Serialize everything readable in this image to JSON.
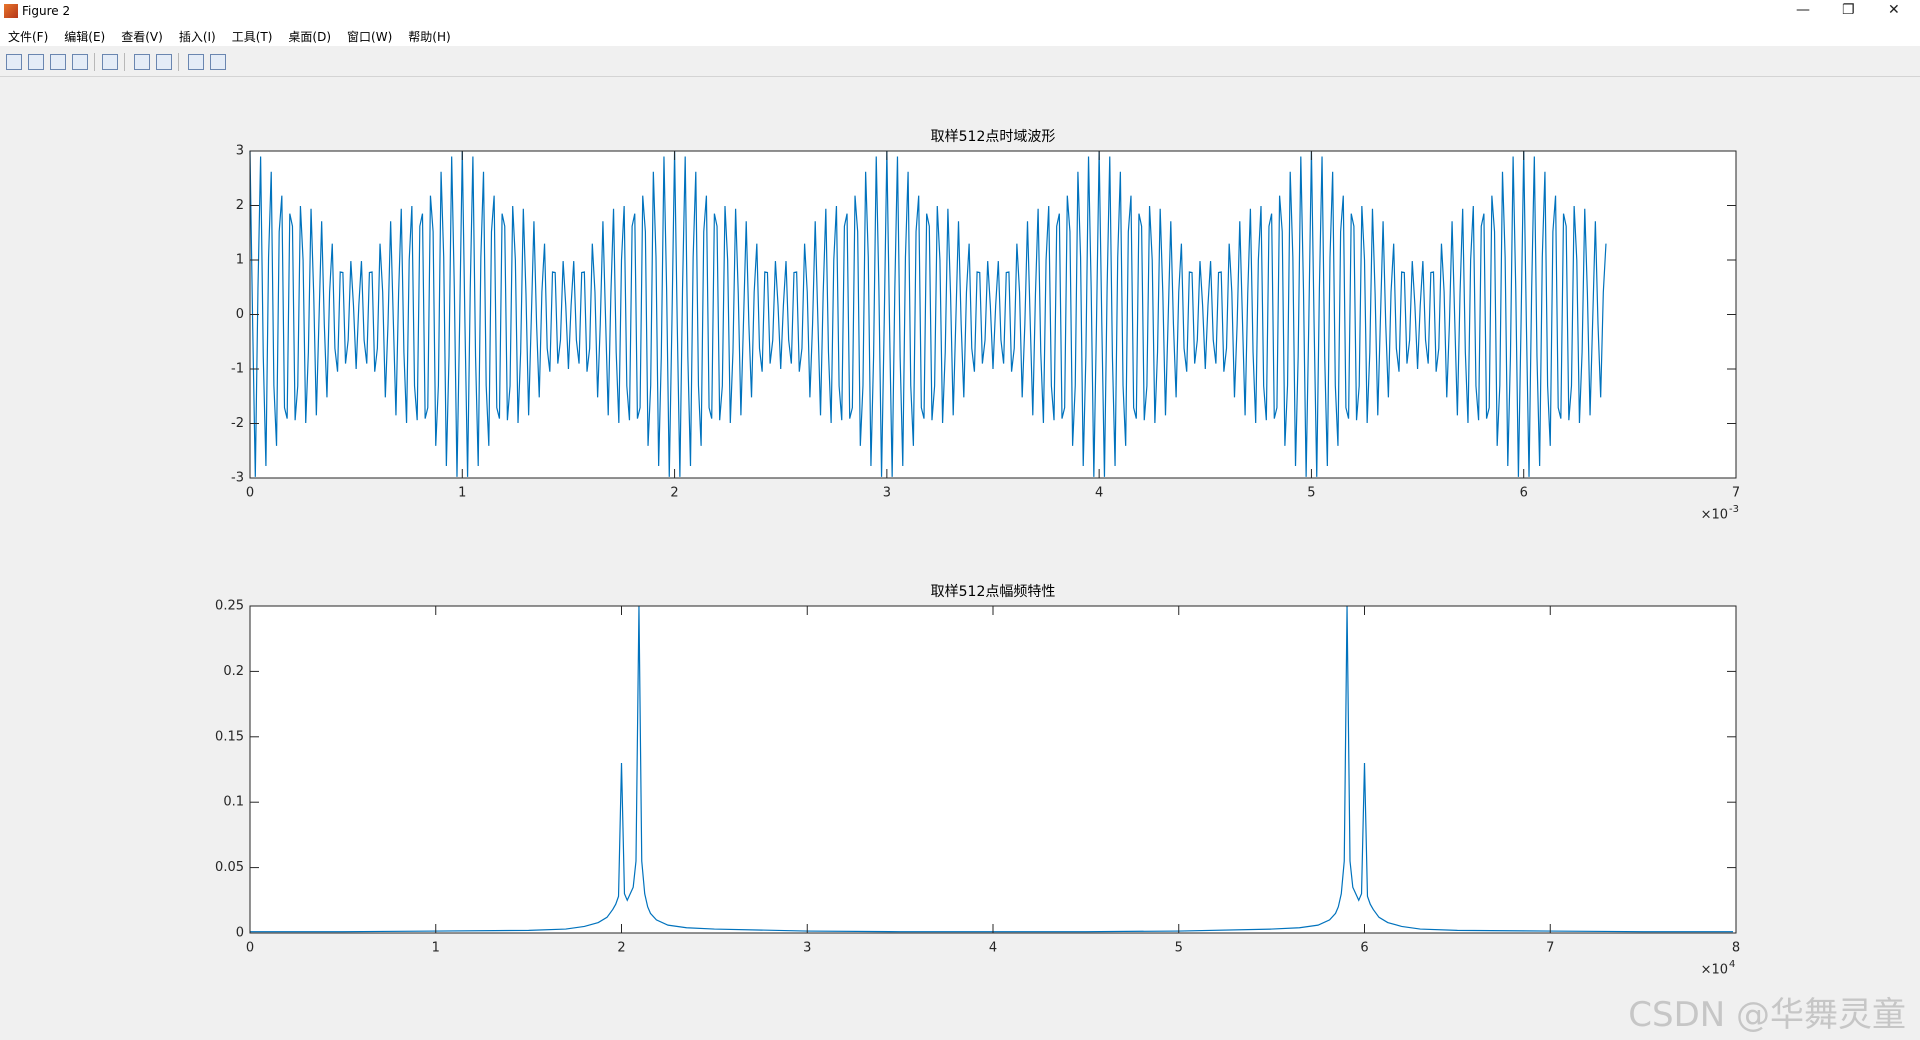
{
  "window": {
    "title": "Figure 2"
  },
  "menu": [
    "文件(F)",
    "编辑(E)",
    "查看(V)",
    "插入(I)",
    "工具(T)",
    "桌面(D)",
    "窗口(W)",
    "帮助(H)"
  ],
  "watermark": "CSDN @华舞灵童",
  "chart_data": [
    {
      "type": "line",
      "title": "取样512点时域波形",
      "color": "#0072bd",
      "xlim": [
        0,
        7
      ],
      "xticks": [
        0,
        1,
        2,
        3,
        4,
        5,
        6,
        7
      ],
      "ylim": [
        -3,
        3
      ],
      "yticks": [
        -3,
        -2,
        -1,
        0,
        1,
        2,
        3
      ],
      "x_multiplier": {
        "base": "×10",
        "exponent": "-3"
      },
      "x": [
        0,
        0.0125,
        0.025,
        0.0375,
        0.05,
        0.0625,
        0.075,
        0.0875,
        0.1,
        0.1125,
        0.125,
        0.1375,
        0.15,
        0.1625,
        0.175,
        0.1875,
        0.2,
        0.2125,
        0.225,
        0.2375,
        0.25,
        0.2625,
        0.275,
        0.2875,
        0.3,
        0.3125,
        0.325,
        0.3375,
        0.35,
        0.3625,
        0.375,
        0.3875,
        0.4,
        0.4125,
        0.425,
        0.4375,
        0.45,
        0.4625,
        0.475,
        0.4875,
        0.5,
        0.5125,
        0.525,
        0.5375,
        0.55,
        0.5625,
        0.575,
        0.5875,
        0.6,
        0.6125,
        0.625,
        0.6375,
        0.65,
        0.6625,
        0.675,
        0.6875,
        0.7,
        0.7125,
        0.725,
        0.7375,
        0.75,
        0.7625,
        0.775,
        0.7875,
        0.8,
        0.8125,
        0.825,
        0.8375,
        0.85,
        0.8625,
        0.875,
        0.8875,
        0.9,
        0.9125,
        0.925,
        0.9375,
        0.95,
        0.9625,
        0.975,
        0.9875,
        1,
        1.0125,
        1.025,
        1.0375,
        1.05,
        1.0625,
        1.075,
        1.0875,
        1.1,
        1.1125,
        1.125,
        1.1375,
        1.15,
        1.1625,
        1.175,
        1.1875,
        1.2,
        1.2125,
        1.225,
        1.2375,
        1.25,
        1.2625,
        1.275,
        1.2875,
        1.3,
        1.3125,
        1.325,
        1.3375,
        1.35,
        1.3625,
        1.375,
        1.3875,
        1.4,
        1.4125,
        1.425,
        1.4375,
        1.45,
        1.4625,
        1.475,
        1.4875,
        1.5,
        1.5125,
        1.525,
        1.5375,
        1.55,
        1.5625,
        1.575,
        1.5875,
        1.6,
        1.6125,
        1.625,
        1.6375,
        1.65,
        1.6625,
        1.675,
        1.6875,
        1.7,
        1.7125,
        1.725,
        1.7375,
        1.75,
        1.7625,
        1.775,
        1.7875,
        1.8,
        1.8125,
        1.825,
        1.8375,
        1.85,
        1.8625,
        1.875,
        1.8875,
        1.9,
        1.9125,
        1.925,
        1.9375,
        1.95,
        1.9625,
        1.975,
        1.9875,
        2,
        2.0125,
        2.025,
        2.0375,
        2.05,
        2.0625,
        2.075,
        2.0875,
        2.1,
        2.1125,
        2.125,
        2.1375,
        2.15,
        2.1625,
        2.175,
        2.1875,
        2.2,
        2.2125,
        2.225,
        2.2375,
        2.25,
        2.2625,
        2.275,
        2.2875,
        2.3,
        2.3125,
        2.325,
        2.3375,
        2.35,
        2.3625,
        2.375,
        2.3875,
        2.4,
        2.4125,
        2.425,
        2.4375,
        2.45,
        2.4625,
        2.475,
        2.4875,
        2.5,
        2.5125,
        2.525,
        2.5375,
        2.55,
        2.5625,
        2.575,
        2.5875,
        2.6,
        2.6125,
        2.625,
        2.6375,
        2.65,
        2.6625,
        2.675,
        2.6875,
        2.7,
        2.7125,
        2.725,
        2.7375,
        2.75,
        2.7625,
        2.775,
        2.7875,
        2.8,
        2.8125,
        2.825,
        2.8375,
        2.85,
        2.8625,
        2.875,
        2.8875,
        2.9,
        2.9125,
        2.925,
        2.9375,
        2.95,
        2.9625,
        2.975,
        2.9875,
        3,
        3.0125,
        3.025,
        3.0375,
        3.05,
        3.0625,
        3.075,
        3.0875,
        3.1,
        3.1125,
        3.125,
        3.1375,
        3.15,
        3.1625,
        3.175,
        3.1875,
        3.2,
        3.2125,
        3.225,
        3.2375,
        3.25,
        3.2625,
        3.275,
        3.2875,
        3.3,
        3.3125,
        3.325,
        3.3375,
        3.35,
        3.3625,
        3.375,
        3.3875,
        3.4,
        3.4125,
        3.425,
        3.4375,
        3.45,
        3.4625,
        3.475,
        3.4875,
        3.5,
        3.5125,
        3.525,
        3.5375,
        3.55,
        3.5625,
        3.575,
        3.5875,
        3.6,
        3.6125,
        3.625,
        3.6375,
        3.65,
        3.6625,
        3.675,
        3.6875,
        3.7,
        3.7125,
        3.725,
        3.7375,
        3.75,
        3.7625,
        3.775,
        3.7875,
        3.8,
        3.8125,
        3.825,
        3.8375,
        3.85,
        3.8625,
        3.875,
        3.8875,
        3.9,
        3.9125,
        3.925,
        3.9375,
        3.95,
        3.9625,
        3.975,
        3.9875,
        4,
        4.0125,
        4.025,
        4.0375,
        4.05,
        4.0625,
        4.075,
        4.0875,
        4.1,
        4.1125,
        4.125,
        4.1375,
        4.15,
        4.1625,
        4.175,
        4.1875,
        4.2,
        4.2125,
        4.225,
        4.2375,
        4.25,
        4.2625,
        4.275,
        4.2875,
        4.3,
        4.3125,
        4.325,
        4.3375,
        4.35,
        4.3625,
        4.375,
        4.3875,
        4.4,
        4.4125,
        4.425,
        4.4375,
        4.45,
        4.4625,
        4.475,
        4.4875,
        4.5,
        4.5125,
        4.525,
        4.5375,
        4.55,
        4.5625,
        4.575,
        4.5875,
        4.6,
        4.6125,
        4.625,
        4.6375,
        4.65,
        4.6625,
        4.675,
        4.6875,
        4.7,
        4.7125,
        4.725,
        4.7375,
        4.75,
        4.7625,
        4.775,
        4.7875,
        4.8,
        4.8125,
        4.825,
        4.8375,
        4.85,
        4.8625,
        4.875,
        4.8875,
        4.9,
        4.9125,
        4.925,
        4.9375,
        4.95,
        4.9625,
        4.975,
        4.9875,
        5,
        5.0125,
        5.025,
        5.0375,
        5.05,
        5.0625,
        5.075,
        5.0875,
        5.1,
        5.1125,
        5.125,
        5.1375,
        5.15,
        5.1625,
        5.175,
        5.1875,
        5.2,
        5.2125,
        5.225,
        5.2375,
        5.25,
        5.2625,
        5.275,
        5.2875,
        5.3,
        5.3125,
        5.325,
        5.3375,
        5.35,
        5.3625,
        5.375,
        5.3875,
        5.4,
        5.4125,
        5.425,
        5.4375,
        5.45,
        5.4625,
        5.475,
        5.4875,
        5.5,
        5.5125,
        5.525,
        5.5375,
        5.55,
        5.5625,
        5.575,
        5.5875,
        5.6,
        5.6125,
        5.625,
        5.6375,
        5.65,
        5.6625,
        5.675,
        5.6875,
        5.7,
        5.7125,
        5.725,
        5.7375,
        5.75,
        5.7625,
        5.775,
        5.7875,
        5.8,
        5.8125,
        5.825,
        5.8375,
        5.85,
        5.8625,
        5.875,
        5.8875,
        5.9,
        5.9125,
        5.925,
        5.9375,
        5.95,
        5.9625,
        5.975,
        5.9875,
        6,
        6.0125,
        6.025,
        6.0375,
        6.05,
        6.0625,
        6.075,
        6.0875,
        6.1,
        6.1125,
        6.125,
        6.1375,
        6.15,
        6.1625,
        6.175,
        6.1875,
        6.2,
        6.2125,
        6.225,
        6.2375,
        6.25,
        6.2625,
        6.275,
        6.2875,
        6.3,
        6.3125,
        6.325,
        6.3375,
        6.35,
        6.3625,
        6.375,
        6.3875
      ],
      "values": [
        3,
        -0.16,
        -2.98,
        0.47,
        2.9,
        -0.77,
        -2.78,
        1.05,
        2.62,
        -1.3,
        -2.41,
        1.52,
        2.18,
        -1.71,
        -1.91,
        1.85,
        1.62,
        -1.94,
        -1.31,
        1.99,
        1,
        -1.99,
        -0.69,
        1.94,
        0.38,
        -1.85,
        -0.09,
        1.71,
        -0.18,
        -1.52,
        0.41,
        1.3,
        -0.62,
        -1.05,
        0.78,
        0.77,
        -0.9,
        -0.47,
        0.98,
        0.16,
        -1,
        0.16,
        0.98,
        -0.47,
        -0.9,
        0.77,
        0.78,
        -1.05,
        -0.62,
        1.3,
        0.41,
        -1.52,
        -0.18,
        1.71,
        -0.09,
        -1.85,
        0.38,
        1.94,
        -0.69,
        -1.99,
        1,
        1.99,
        -1.31,
        -1.94,
        1.62,
        1.85,
        -1.91,
        -1.71,
        2.18,
        1.52,
        -2.41,
        -1.3,
        2.62,
        1.05,
        -2.78,
        -0.77,
        2.9,
        0.47,
        -2.98,
        -0.16,
        3,
        -0.16,
        -2.98,
        0.47,
        2.9,
        -0.77,
        -2.78,
        1.05,
        2.62,
        -1.3,
        -2.41,
        1.52,
        2.18,
        -1.71,
        -1.91,
        1.85,
        1.62,
        -1.94,
        -1.31,
        1.99,
        1,
        -1.99,
        -0.69,
        1.94,
        0.38,
        -1.85,
        -0.09,
        1.71,
        -0.18,
        -1.52,
        0.41,
        1.3,
        -0.62,
        -1.05,
        0.78,
        0.77,
        -0.9,
        -0.47,
        0.98,
        0.16,
        -1,
        0.16,
        0.98,
        -0.47,
        -0.9,
        0.77,
        0.78,
        -1.05,
        -0.62,
        1.3,
        0.41,
        -1.52,
        -0.18,
        1.71,
        -0.09,
        -1.85,
        0.38,
        1.94,
        -0.69,
        -1.99,
        1,
        1.99,
        -1.31,
        -1.94,
        1.62,
        1.85,
        -1.91,
        -1.71,
        2.18,
        1.52,
        -2.41,
        -1.3,
        2.62,
        1.05,
        -2.78,
        -0.77,
        2.9,
        0.47,
        -2.98,
        -0.16,
        3,
        -0.16,
        -2.98,
        0.47,
        2.9,
        -0.77,
        -2.78,
        1.05,
        2.62,
        -1.3,
        -2.41,
        1.52,
        2.18,
        -1.71,
        -1.91,
        1.85,
        1.62,
        -1.94,
        -1.31,
        1.99,
        1,
        -1.99,
        -0.69,
        1.94,
        0.38,
        -1.85,
        -0.09,
        1.71,
        -0.18,
        -1.52,
        0.41,
        1.3,
        -0.62,
        -1.05,
        0.78,
        0.77,
        -0.9,
        -0.47,
        0.98,
        0.16,
        -1,
        0.16,
        0.98,
        -0.47,
        -0.9,
        0.77,
        0.78,
        -1.05,
        -0.62,
        1.3,
        0.41,
        -1.52,
        -0.18,
        1.71,
        -0.09,
        -1.85,
        0.38,
        1.94,
        -0.69,
        -1.99,
        1,
        1.99,
        -1.31,
        -1.94,
        1.62,
        1.85,
        -1.91,
        -1.71,
        2.18,
        1.52,
        -2.41,
        -1.3,
        2.62,
        1.05,
        -2.78,
        -0.77,
        2.9,
        0.47,
        -2.98,
        -0.16,
        3,
        -0.16,
        -2.98,
        0.47,
        2.9,
        -0.77,
        -2.78,
        1.05,
        2.62,
        -1.3,
        -2.41,
        1.52,
        2.18,
        -1.71,
        -1.91,
        1.85,
        1.62,
        -1.94,
        -1.31,
        1.99,
        1,
        -1.99,
        -0.69,
        1.94,
        0.38,
        -1.85,
        -0.09,
        1.71,
        -0.18,
        -1.52,
        0.41,
        1.3,
        -0.62,
        -1.05,
        0.78,
        0.77,
        -0.9,
        -0.47,
        0.98,
        0.16,
        -1,
        0.16,
        0.98,
        -0.47,
        -0.9,
        0.77,
        0.78,
        -1.05,
        -0.62,
        1.3,
        0.41,
        -1.52,
        -0.18,
        1.71,
        -0.09,
        -1.85,
        0.38,
        1.94,
        -0.69,
        -1.99,
        1,
        1.99,
        -1.31,
        -1.94,
        1.62,
        1.85,
        -1.91,
        -1.71,
        2.18,
        1.52,
        -2.41,
        -1.3,
        2.62,
        1.05,
        -2.78,
        -0.77,
        2.9,
        0.47,
        -2.98,
        -0.16,
        3,
        -0.16,
        -2.98,
        0.47,
        2.9,
        -0.77,
        -2.78,
        1.05,
        2.62,
        -1.3,
        -2.41,
        1.52,
        2.18,
        -1.71,
        -1.91,
        1.85,
        1.62,
        -1.94,
        -1.31,
        1.99,
        1,
        -1.99,
        -0.69,
        1.94,
        0.38,
        -1.85,
        -0.09,
        1.71,
        -0.18,
        -1.52,
        0.41,
        1.3,
        -0.62,
        -1.05,
        0.78,
        0.77,
        -0.9,
        -0.47,
        0.98,
        0.16,
        -1,
        0.16,
        0.98,
        -0.47,
        -0.9,
        0.77,
        0.78,
        -1.05,
        -0.62,
        1.3,
        0.41,
        -1.52,
        -0.18,
        1.71,
        -0.09,
        -1.85,
        0.38,
        1.94,
        -0.69,
        -1.99,
        1,
        1.99,
        -1.31,
        -1.94,
        1.62,
        1.85,
        -1.91,
        -1.71,
        2.18,
        1.52,
        -2.41,
        -1.3,
        2.62,
        1.05,
        -2.78,
        -0.77,
        2.9,
        0.47,
        -2.98,
        -0.16,
        3,
        -0.16,
        -2.98,
        0.47,
        2.9,
        -0.77,
        -2.78,
        1.05,
        2.62,
        -1.3,
        -2.41,
        1.52,
        2.18,
        -1.71,
        -1.91,
        1.85,
        1.62,
        -1.94,
        -1.31,
        1.99,
        1,
        -1.99,
        -0.69,
        1.94,
        0.38,
        -1.85,
        -0.09,
        1.71,
        -0.18,
        -1.52,
        0.41,
        1.3,
        -0.62,
        -1.05,
        0.78,
        0.77,
        -0.9,
        -0.47,
        0.98,
        0.16,
        -1,
        0.16,
        0.98,
        -0.47,
        -0.9,
        0.77,
        0.78,
        -1.05,
        -0.62,
        1.3,
        0.41,
        -1.52,
        -0.18,
        1.71,
        -0.09,
        -1.85,
        0.38,
        1.94,
        -0.69,
        -1.99,
        1,
        1.99,
        -1.31,
        -1.94,
        1.62,
        1.85,
        -1.91,
        -1.71,
        2.18,
        1.52,
        -2.41,
        -1.3,
        2.62,
        1.05,
        -2.78,
        -0.77,
        2.9,
        0.47,
        -2.98,
        -0.16,
        3,
        -0.16,
        -2.98,
        0.47,
        2.9,
        -0.77,
        -2.78,
        1.05,
        2.62,
        -1.3,
        -2.41,
        1.52,
        2.18,
        -1.71,
        -1.91,
        1.85,
        1.62,
        -1.94,
        -1.31,
        1.99,
        1,
        -1.99,
        -0.69,
        1.94,
        0.38,
        -1.85,
        -0.09,
        1.71,
        -0.18,
        -1.52,
        0.41,
        1.3
      ]
    },
    {
      "type": "line",
      "title": "取样512点幅频特性",
      "color": "#0072bd",
      "xlim": [
        0,
        8
      ],
      "xticks": [
        0,
        1,
        2,
        3,
        4,
        5,
        6,
        7,
        8
      ],
      "ylim": [
        0,
        0.25
      ],
      "yticks": [
        0,
        0.05,
        0.1,
        0.15,
        0.2,
        0.25
      ],
      "x_multiplier": {
        "base": "×10",
        "exponent": "4"
      },
      "x": [
        0,
        0.5,
        1,
        1.5,
        1.7,
        1.8,
        1.875,
        1.922,
        1.953,
        1.969,
        1.984,
        2,
        2.016,
        2.031,
        2.047,
        2.063,
        2.078,
        2.094,
        2.109,
        2.125,
        2.141,
        2.156,
        2.188,
        2.25,
        2.35,
        2.5,
        3,
        3.5,
        4,
        4.5,
        5,
        5.5,
        5.65,
        5.75,
        5.812,
        5.844,
        5.859,
        5.875,
        5.891,
        5.906,
        5.922,
        5.937,
        5.953,
        5.969,
        5.984,
        6,
        6.016,
        6.031,
        6.047,
        6.078,
        6.125,
        6.2,
        6.3,
        6.5,
        7,
        7.5,
        7.984
      ],
      "values": [
        0.001,
        0.001,
        0.0015,
        0.002,
        0.003,
        0.005,
        0.008,
        0.012,
        0.018,
        0.022,
        0.028,
        0.13,
        0.03,
        0.025,
        0.03,
        0.035,
        0.055,
        0.25,
        0.055,
        0.03,
        0.02,
        0.015,
        0.01,
        0.006,
        0.004,
        0.003,
        0.0015,
        0.001,
        0.001,
        0.001,
        0.0015,
        0.003,
        0.004,
        0.006,
        0.01,
        0.015,
        0.02,
        0.03,
        0.055,
        0.25,
        0.055,
        0.035,
        0.03,
        0.025,
        0.03,
        0.13,
        0.028,
        0.022,
        0.018,
        0.012,
        0.008,
        0.005,
        0.003,
        0.002,
        0.0015,
        0.001,
        0.001
      ]
    }
  ]
}
